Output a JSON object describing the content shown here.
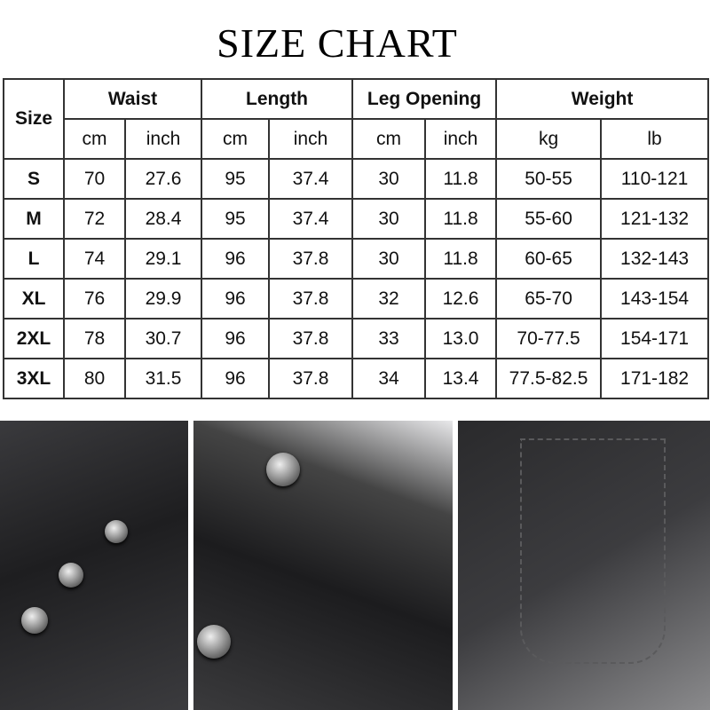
{
  "title": "SIZE CHART",
  "table": {
    "size_header": "Size",
    "groups": [
      "Waist",
      "Length",
      "Leg Opening",
      "Weight"
    ],
    "units": [
      "cm",
      "inch",
      "cm",
      "inch",
      "cm",
      "inch",
      "kg",
      "lb"
    ],
    "rows": [
      [
        "S",
        "70",
        "27.6",
        "95",
        "37.4",
        "30",
        "11.8",
        "50-55",
        "110-121"
      ],
      [
        "M",
        "72",
        "28.4",
        "95",
        "37.4",
        "30",
        "11.8",
        "55-60",
        "121-132"
      ],
      [
        "L",
        "74",
        "29.1",
        "96",
        "37.8",
        "30",
        "11.8",
        "60-65",
        "132-143"
      ],
      [
        "XL",
        "76",
        "29.9",
        "96",
        "37.8",
        "32",
        "12.6",
        "65-70",
        "143-154"
      ],
      [
        "2XL",
        "78",
        "30.7",
        "96",
        "37.8",
        "33",
        "13.0",
        "70-77.5",
        "154-171"
      ],
      [
        "3XL",
        "80",
        "31.5",
        "96",
        "37.8",
        "34",
        "13.4",
        "77.5-82.5",
        "171-182"
      ]
    ]
  },
  "photos": [
    "side-button-detail",
    "waistband-pocket-detail",
    "back-pocket-detail"
  ]
}
